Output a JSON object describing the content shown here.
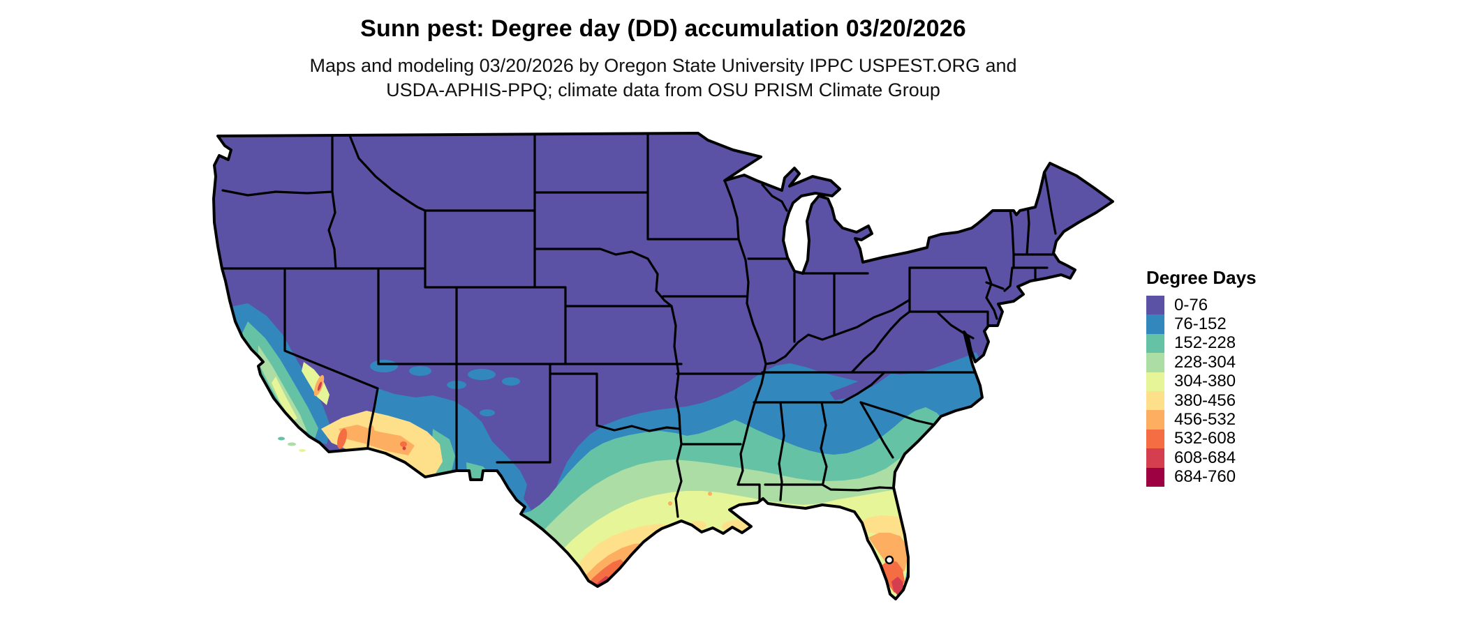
{
  "header": {
    "title": "Sunn pest: Degree day (DD) accumulation 03/20/2026",
    "subtitle_line1": "Maps and modeling 03/20/2026 by Oregon State University IPPC USPEST.ORG and",
    "subtitle_line2": "USDA-APHIS-PPQ; climate data from OSU PRISM Climate Group"
  },
  "legend": {
    "title": "Degree Days",
    "items": [
      {
        "range": "0-76",
        "color": "#5b52a5"
      },
      {
        "range": "76-152",
        "color": "#3288bd"
      },
      {
        "range": "152-228",
        "color": "#66c2a5"
      },
      {
        "range": "228-304",
        "color": "#abdda4"
      },
      {
        "range": "304-380",
        "color": "#e6f598"
      },
      {
        "range": "380-456",
        "color": "#fee08b"
      },
      {
        "range": "456-532",
        "color": "#fdae61"
      },
      {
        "range": "532-608",
        "color": "#f46d43"
      },
      {
        "range": "608-684",
        "color": "#d53e4f"
      },
      {
        "range": "684-760",
        "color": "#9e0142"
      }
    ]
  },
  "map": {
    "region": "Contiguous United States",
    "kind": "Degree-day accumulation choropleth raster with black state boundaries",
    "background": "#ffffff",
    "border_color": "#000000",
    "gradient_note": "Lowest accumulation (purple) across the north and west; increasing bands (blue, teal, green, yellow) across the south; highest values (orange, red, dark red) in south Texas, southern Florida / Keys, and the southwest deserts"
  }
}
